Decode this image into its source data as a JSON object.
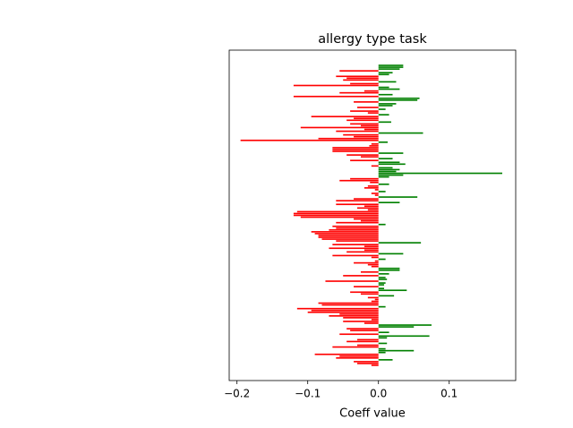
{
  "chart_data": {
    "type": "barh",
    "title": "allergy type task",
    "x_label": "Coeff value",
    "categories": [
      null,
      null,
      null,
      null,
      null,
      null,
      null,
      null,
      null,
      null,
      null,
      null,
      null,
      null,
      null,
      null,
      null,
      null,
      null,
      null,
      null,
      null,
      null,
      null,
      null,
      null,
      null,
      null,
      null,
      null,
      null,
      null,
      null,
      null,
      null,
      null,
      null,
      null,
      null,
      null,
      null,
      null,
      null,
      null,
      null,
      null,
      null,
      null,
      null,
      null,
      null,
      null,
      null,
      null,
      null,
      null,
      null,
      null,
      null,
      null,
      null,
      null,
      null,
      null,
      null,
      null,
      null,
      null,
      null,
      null,
      null,
      null,
      null,
      null,
      null,
      null,
      null,
      null,
      null,
      null,
      null,
      null,
      null,
      null,
      null,
      null,
      null,
      null,
      null,
      null,
      null,
      null,
      null,
      null,
      null,
      null,
      null,
      null,
      null,
      null,
      null,
      null,
      null,
      null,
      null,
      null,
      null,
      null,
      null,
      null,
      null,
      null,
      null,
      null,
      null,
      null,
      null,
      null,
      null,
      null,
      null,
      null,
      null,
      null,
      null,
      null,
      null,
      null,
      null,
      null,
      null,
      null,
      null,
      null,
      null,
      null,
      null,
      null,
      null,
      null,
      null,
      null,
      null,
      null,
      null,
      null,
      null,
      null,
      null,
      null,
      null,
      null,
      null,
      null,
      null,
      null,
      null,
      null,
      null,
      null,
      null,
      null,
      null,
      null,
      null
    ],
    "values": [
      0.035,
      0.035,
      0.03,
      -0.055,
      0.02,
      0.015,
      -0.06,
      -0.045,
      -0.05,
      0.025,
      -0.04,
      -0.12,
      0.015,
      0.03,
      -0.02,
      -0.055,
      0.02,
      -0.12,
      0.058,
      0.055,
      -0.035,
      0.025,
      0.02,
      -0.03,
      0.01,
      -0.04,
      -0.015,
      0.015,
      -0.095,
      -0.035,
      -0.045,
      0.018,
      -0.04,
      -0.025,
      -0.11,
      -0.02,
      -0.06,
      0.063,
      -0.05,
      -0.035,
      -0.085,
      -0.195,
      0.013,
      -0.01,
      -0.013,
      -0.065,
      -0.065,
      -0.065,
      0.035,
      -0.045,
      -0.025,
      0.02,
      -0.04,
      0.03,
      0.038,
      -0.01,
      0.02,
      0.03,
      0.025,
      0.175,
      0.035,
      0.015,
      -0.04,
      -0.055,
      -0.012,
      0.015,
      -0.015,
      -0.02,
      -0.005,
      0.01,
      -0.01,
      -0.005,
      0.055,
      -0.035,
      -0.06,
      0.03,
      -0.06,
      -0.02,
      -0.03,
      -0.015,
      -0.115,
      -0.12,
      -0.12,
      -0.11,
      -0.035,
      -0.025,
      -0.06,
      0.01,
      -0.065,
      -0.06,
      -0.07,
      -0.095,
      -0.09,
      -0.085,
      -0.085,
      -0.08,
      -0.06,
      0.06,
      -0.065,
      -0.02,
      -0.07,
      -0.02,
      -0.045,
      0.035,
      -0.065,
      -0.01,
      0.01,
      -0.005,
      -0.035,
      -0.015,
      -0.01,
      0.03,
      0.03,
      -0.025,
      0.015,
      -0.05,
      0.01,
      0.012,
      -0.075,
      0.01,
      0.008,
      -0.035,
      0.008,
      0.04,
      -0.04,
      -0.025,
      0.022,
      -0.015,
      -0.005,
      -0.01,
      -0.085,
      -0.08,
      0.01,
      -0.115,
      -0.095,
      -0.1,
      -0.055,
      -0.07,
      -0.05,
      -0.01,
      -0.05,
      -0.02,
      0.075,
      0.05,
      -0.045,
      -0.04,
      0.015,
      -0.055,
      0.072,
      0.012,
      -0.03,
      -0.045,
      0.012,
      -0.03,
      -0.065,
      0.01,
      0.05,
      0.01,
      -0.09,
      -0.055,
      -0.06,
      0.02,
      -0.035,
      -0.03,
      -0.01
    ],
    "color_positive": "#008000",
    "color_negative": "#ff0000",
    "xlim": [
      -0.211,
      0.194
    ],
    "xticks": [
      {
        "value": -0.2,
        "label": "−0.2"
      },
      {
        "value": -0.1,
        "label": "−0.1"
      },
      {
        "value": 0,
        "label": "0.0"
      },
      {
        "value": 0.1,
        "label": "0.1"
      }
    ]
  }
}
